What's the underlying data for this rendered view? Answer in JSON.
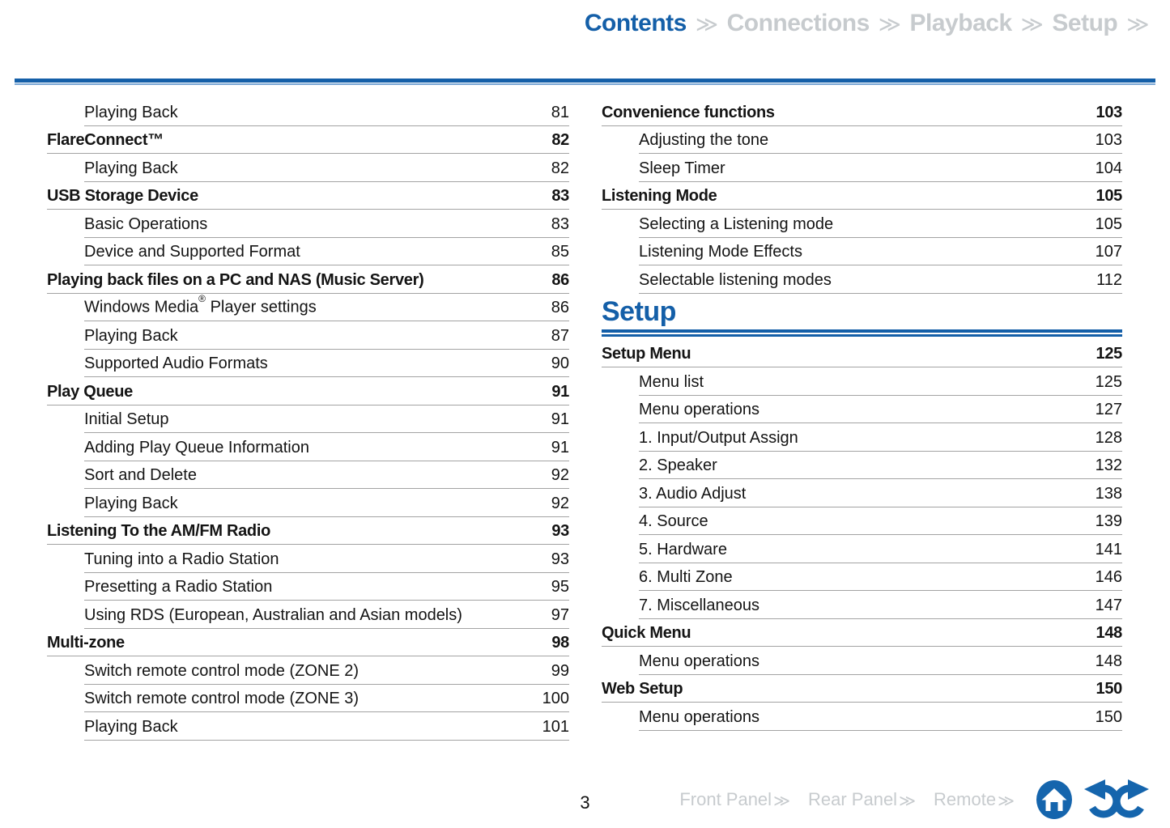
{
  "nav": {
    "chevron": "≫",
    "items": [
      {
        "label": "Contents",
        "state": "active"
      },
      {
        "label": "Connections",
        "state": "inactive"
      },
      {
        "label": "Playback",
        "state": "inactive"
      },
      {
        "label": "Setup",
        "state": "inactive"
      }
    ]
  },
  "toc": {
    "columns": [
      {
        "entries": [
          {
            "label": "Playing Back",
            "page": "81",
            "bold": false
          },
          {
            "label": "FlareConnect™",
            "page": "82",
            "bold": true
          },
          {
            "label": "Playing Back",
            "page": "82",
            "bold": false
          },
          {
            "label": "USB Storage Device",
            "page": "83",
            "bold": true
          },
          {
            "label": "Basic Operations",
            "page": "83",
            "bold": false
          },
          {
            "label": "Device and Supported Format",
            "page": "85",
            "bold": false
          },
          {
            "label": "Playing back files on a PC and NAS (Music Server)",
            "page": "86",
            "bold": true
          },
          {
            "label": "Windows Media® Player settings",
            "page": "86",
            "bold": false
          },
          {
            "label": "Playing Back",
            "page": "87",
            "bold": false
          },
          {
            "label": "Supported Audio Formats",
            "page": "90",
            "bold": false
          },
          {
            "label": "Play Queue",
            "page": "91",
            "bold": true
          },
          {
            "label": "Initial Setup",
            "page": "91",
            "bold": false
          },
          {
            "label": "Adding Play Queue Information",
            "page": "91",
            "bold": false
          },
          {
            "label": "Sort and Delete",
            "page": "92",
            "bold": false
          },
          {
            "label": "Playing Back",
            "page": "92",
            "bold": false
          },
          {
            "label": "Listening To the AM/FM Radio",
            "page": "93",
            "bold": true
          },
          {
            "label": "Tuning into a Radio Station",
            "page": "93",
            "bold": false
          },
          {
            "label": "Presetting a Radio Station",
            "page": "95",
            "bold": false
          },
          {
            "label": "Using RDS (European, Australian and Asian models)",
            "page": "97",
            "bold": false
          },
          {
            "label": "Multi-zone",
            "page": "98",
            "bold": true
          },
          {
            "label": "Switch remote control mode (ZONE 2)",
            "page": "99",
            "bold": false
          },
          {
            "label": "Switch remote control mode (ZONE 3)",
            "page": "100",
            "bold": false
          },
          {
            "label": "Playing Back",
            "page": "101",
            "bold": false
          }
        ]
      },
      {
        "entries": [
          {
            "label": "Convenience functions",
            "page": "103",
            "bold": true
          },
          {
            "label": "Adjusting the tone",
            "page": "103",
            "bold": false
          },
          {
            "label": "Sleep Timer",
            "page": "104",
            "bold": false
          },
          {
            "label": "Listening Mode",
            "page": "105",
            "bold": true
          },
          {
            "label": "Selecting a Listening mode",
            "page": "105",
            "bold": false
          },
          {
            "label": "Listening Mode Effects",
            "page": "107",
            "bold": false
          },
          {
            "label": "Selectable listening modes",
            "page": "112",
            "bold": false
          },
          {
            "section": "Setup"
          },
          {
            "label": "Setup Menu",
            "page": "125",
            "bold": true
          },
          {
            "label": "Menu list",
            "page": "125",
            "bold": false
          },
          {
            "label": "Menu operations",
            "page": "127",
            "bold": false
          },
          {
            "label": "1. Input/Output Assign",
            "page": "128",
            "bold": false
          },
          {
            "label": "2. Speaker",
            "page": "132",
            "bold": false
          },
          {
            "label": "3. Audio Adjust",
            "page": "138",
            "bold": false
          },
          {
            "label": "4. Source",
            "page": "139",
            "bold": false
          },
          {
            "label": "5. Hardware",
            "page": "141",
            "bold": false
          },
          {
            "label": "6. Multi Zone",
            "page": "146",
            "bold": false
          },
          {
            "label": "7. Miscellaneous",
            "page": "147",
            "bold": false
          },
          {
            "label": "Quick Menu",
            "page": "148",
            "bold": true
          },
          {
            "label": "Menu operations",
            "page": "148",
            "bold": false
          },
          {
            "label": "Web Setup",
            "page": "150",
            "bold": true
          },
          {
            "label": "Menu operations",
            "page": "150",
            "bold": false
          }
        ]
      }
    ]
  },
  "footer": {
    "page_number": "3",
    "chevron": "≫",
    "links": [
      {
        "label": "Front Panel"
      },
      {
        "label": "Rear Panel"
      },
      {
        "label": "Remote"
      }
    ],
    "icons": [
      "home-icon",
      "undo-arrow-icon",
      "redo-arrow-icon"
    ]
  },
  "colors": {
    "accent_blue": "#145fa8",
    "icon_blue": "#1565ad",
    "nav_inactive": "#c7cbce",
    "leader_line": "#a3a3a3"
  }
}
